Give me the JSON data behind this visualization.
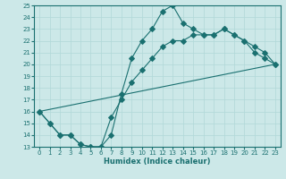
{
  "xlabel": "Humidex (Indice chaleur)",
  "xlim": [
    -0.5,
    23.5
  ],
  "ylim": [
    13,
    25
  ],
  "xticks": [
    0,
    1,
    2,
    3,
    4,
    5,
    6,
    7,
    8,
    9,
    10,
    11,
    12,
    13,
    14,
    15,
    16,
    17,
    18,
    19,
    20,
    21,
    22,
    23
  ],
  "yticks": [
    13,
    14,
    15,
    16,
    17,
    18,
    19,
    20,
    21,
    22,
    23,
    24,
    25
  ],
  "bg_color": "#cce8e8",
  "grid_color": "#b0d8d8",
  "line_color": "#1a7070",
  "line1_x": [
    0,
    1,
    2,
    3,
    4,
    5,
    6,
    7,
    8,
    9,
    10,
    11,
    12,
    13,
    14,
    15,
    16,
    17,
    18,
    19,
    20,
    21,
    22,
    23
  ],
  "line1_y": [
    16,
    15,
    14,
    14,
    13.2,
    13,
    13,
    14,
    17.5,
    20.5,
    22,
    23,
    24.5,
    25,
    23.5,
    23,
    22.5,
    22.5,
    23,
    22.5,
    22,
    21,
    20.5,
    20
  ],
  "line2_x": [
    0,
    23
  ],
  "line2_y": [
    16,
    20
  ],
  "line3_x": [
    0,
    1,
    2,
    3,
    4,
    5,
    6,
    7,
    8,
    9,
    10,
    11,
    12,
    13,
    14,
    15,
    16,
    17,
    18,
    19,
    20,
    21,
    22,
    23
  ],
  "line3_y": [
    16,
    15,
    14,
    14,
    13.2,
    13,
    13,
    15.5,
    17,
    18.5,
    19.5,
    20.5,
    21.5,
    22,
    22,
    22.5,
    22.5,
    22.5,
    23,
    22.5,
    22,
    21.5,
    21,
    20
  ]
}
